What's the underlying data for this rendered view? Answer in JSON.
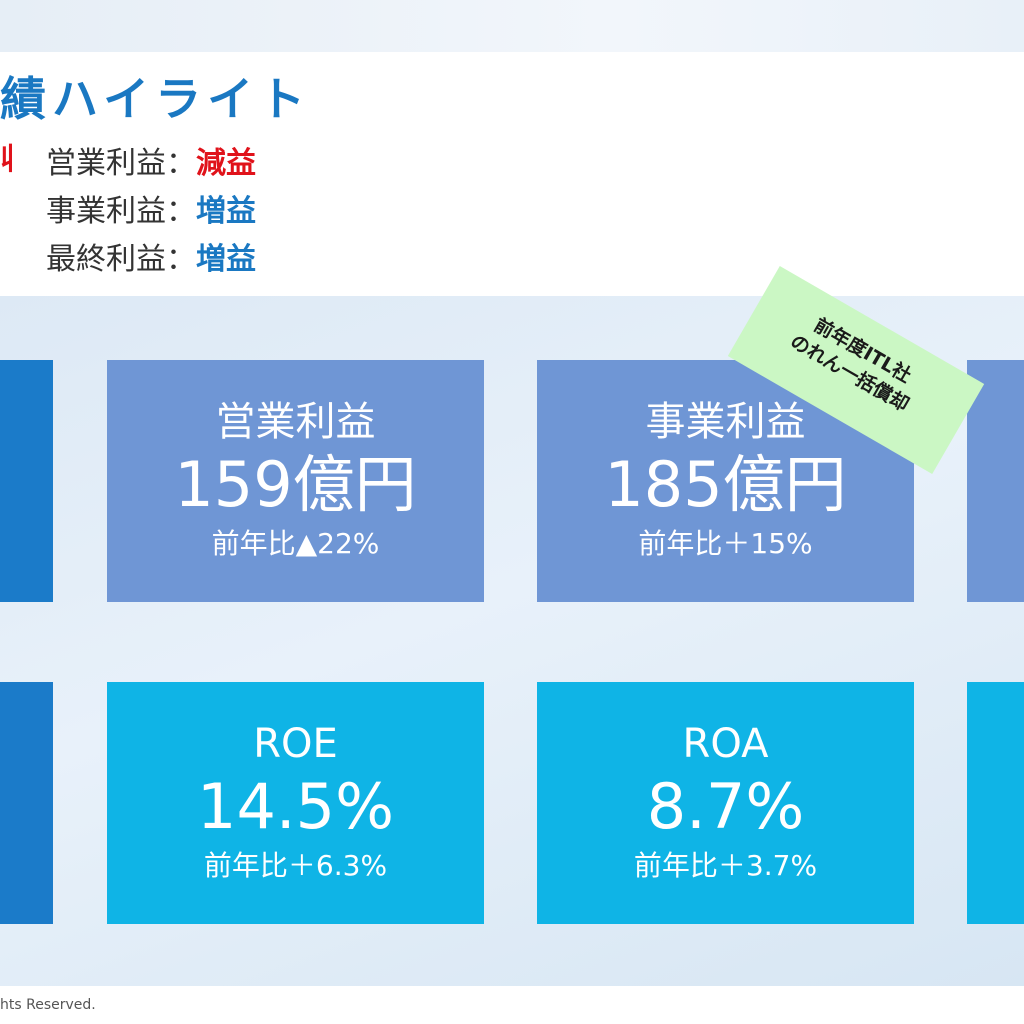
{
  "header": {
    "title": "績ハイライト",
    "left_glyph": "収",
    "summary": [
      {
        "label": "営業利益：",
        "result": "減益",
        "tone": "down"
      },
      {
        "label": "事業利益：",
        "result": "増益",
        "tone": "up"
      },
      {
        "label": "最終利益：",
        "result": "増益",
        "tone": "up"
      }
    ]
  },
  "cards": {
    "operating_profit": {
      "name": "営業利益",
      "value": "159億円",
      "change": "前年比▲22%"
    },
    "business_profit": {
      "name": "事業利益",
      "value": "185億円",
      "change": "前年比＋15%"
    },
    "roe": {
      "name": "ROE",
      "value": "14.5%",
      "change": "前年比＋6.3%"
    },
    "roa": {
      "name": "ROA",
      "value": "8.7%",
      "change": "前年比＋3.7%"
    }
  },
  "note": {
    "line1": "前年度ITL社",
    "line2": "のれん一括償却"
  },
  "footer": {
    "copyright": "hts Reserved."
  },
  "colors": {
    "title": "#1a78c2",
    "decrease": "#e0121a",
    "increase": "#1a78c2",
    "card_blue": "#6f96d5",
    "card_cyan": "#0fb4e6",
    "edge_block": "#1b7bc9",
    "note_ribbon": "#cbf7c4"
  }
}
